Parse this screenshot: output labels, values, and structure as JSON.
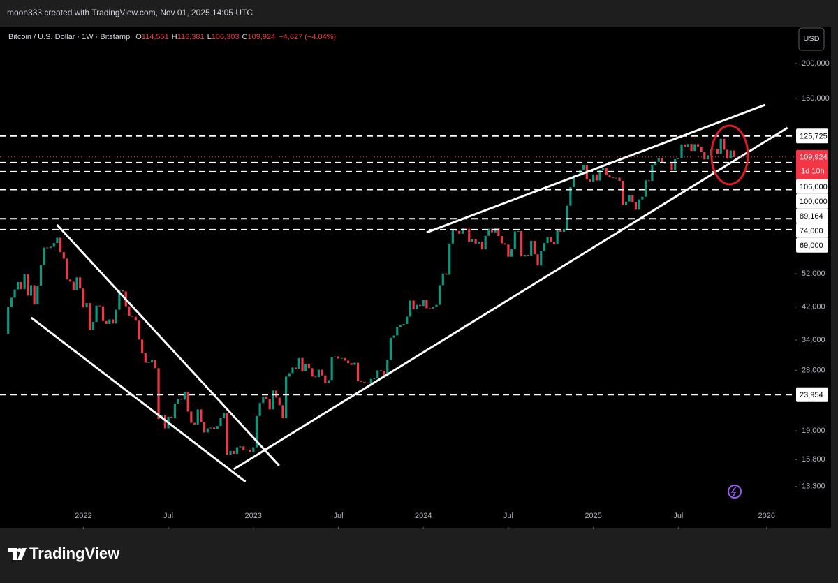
{
  "page_header": "moon333 created with TradingView.com, Nov 01, 2025 14:05 UTC",
  "chart_data": {
    "type": "candlestick",
    "symbol": "Bitcoin / U.S. Dollar · 1W · Bitstamp",
    "ohlc_text": [
      {
        "key": "O",
        "value": "114,551"
      },
      {
        "key": "H",
        "value": "116,381"
      },
      {
        "key": "L",
        "value": "106,303"
      },
      {
        "key": "C",
        "value": "109,924"
      }
    ],
    "change": "−4,627 (−4.04%)",
    "currency": "USD",
    "log_scale": true,
    "grid": false,
    "up_color": "#089981",
    "down_color": "#f23645",
    "xlim": [
      -2.5,
      240.6
    ],
    "xticks": [
      {
        "value": 23,
        "label": "2022"
      },
      {
        "value": 49,
        "label": "Jul"
      },
      {
        "value": 75,
        "label": "2023"
      },
      {
        "value": 101,
        "label": "Jul"
      },
      {
        "value": 127,
        "label": "2024"
      },
      {
        "value": 153,
        "label": "Jul"
      },
      {
        "value": 179,
        "label": "2025"
      },
      {
        "value": 205,
        "label": "Jul"
      },
      {
        "value": 232,
        "label": "2026"
      }
    ],
    "ylim": [
      10250,
      253500
    ],
    "yticks": [
      {
        "value": 200000,
        "label": "200,000"
      },
      {
        "value": 160000,
        "label": "160,000"
      },
      {
        "value": 52000,
        "label": "52,000"
      },
      {
        "value": 42000,
        "label": "42,000"
      },
      {
        "value": 34000,
        "label": "34,000"
      },
      {
        "value": 28000,
        "label": "28,000"
      },
      {
        "value": 19000,
        "label": "19,000"
      },
      {
        "value": 15800,
        "label": "15,800"
      },
      {
        "value": 13300,
        "label": "13,300"
      }
    ],
    "levels": [
      {
        "value": 125725,
        "label": "125,725"
      },
      {
        "value": 106000,
        "label": "106,000"
      },
      {
        "value": 100000,
        "label": "100,000"
      },
      {
        "value": 89164,
        "label": "89,164"
      },
      {
        "value": 74000,
        "label": "74,000"
      },
      {
        "value": 69000,
        "label": "69,000"
      },
      {
        "value": 23954,
        "label": "23,954"
      }
    ],
    "last_price": {
      "value": 109924,
      "label": "109,924",
      "countdown": "1d 10h"
    },
    "trendlines": [
      [
        14.95,
        71150,
        82.9,
        15200
      ],
      [
        7.05,
        39240,
        72.6,
        13710
      ],
      [
        69.0,
        14860,
        238.4,
        132500
      ],
      [
        128.0,
        67730,
        231.6,
        153600
      ]
    ],
    "highlight": {
      "x": 220.7,
      "y": 111300
    },
    "series": [
      {
        "name": "BTCUSD",
        "values": [
          [
            35400,
            42000
          ],
          [
            42000,
            44600
          ],
          [
            44600,
            47000
          ],
          [
            47000,
            49300
          ],
          [
            49300,
            47100
          ],
          [
            47100,
            51800
          ],
          [
            51800,
            45200
          ],
          [
            45200,
            48300
          ],
          [
            48300,
            42700
          ],
          [
            42700,
            48200
          ],
          [
            48200,
            54900
          ],
          [
            54900,
            61500
          ],
          [
            61500,
            61300
          ],
          [
            61300,
            61800
          ],
          [
            61800,
            63300
          ],
          [
            63300,
            65500
          ],
          [
            65500,
            59700
          ],
          [
            59700,
            57300
          ],
          [
            57300,
            50100
          ],
          [
            50100,
            49400
          ],
          [
            49400,
            46700
          ],
          [
            46700,
            50800
          ],
          [
            50800,
            47300
          ],
          [
            47300,
            41900
          ],
          [
            41900,
            43100
          ],
          [
            43100,
            36300
          ],
          [
            36300,
            38200
          ],
          [
            38200,
            42400
          ],
          [
            42400,
            42200
          ],
          [
            42200,
            38400
          ],
          [
            38400,
            37700
          ],
          [
            37700,
            38800
          ],
          [
            38800,
            37800
          ],
          [
            37800,
            41300
          ],
          [
            41300,
            46800
          ],
          [
            46800,
            46400
          ],
          [
            46400,
            42200
          ],
          [
            42200,
            39700
          ],
          [
            39700,
            39500
          ],
          [
            39500,
            38500
          ],
          [
            38500,
            34100
          ],
          [
            34100,
            31300
          ],
          [
            31300,
            29400
          ],
          [
            29400,
            29500
          ],
          [
            29500,
            29900
          ],
          [
            29900,
            28400
          ],
          [
            28400,
            20500
          ],
          [
            20500,
            21000
          ],
          [
            21000,
            19300
          ],
          [
            19300,
            20800
          ],
          [
            20800,
            20600
          ],
          [
            20600,
            22600
          ],
          [
            22600,
            23300
          ],
          [
            23300,
            23200
          ],
          [
            23200,
            24400
          ],
          [
            24400,
            21500
          ],
          [
            21500,
            20000
          ],
          [
            20000,
            19800
          ],
          [
            19800,
            21800
          ],
          [
            21800,
            20100
          ],
          [
            20100,
            18800
          ],
          [
            18800,
            19300
          ],
          [
            19300,
            19400
          ],
          [
            19400,
            19200
          ],
          [
            19200,
            19600
          ],
          [
            19600,
            20600
          ],
          [
            20600,
            21300
          ],
          [
            21300,
            16300
          ],
          [
            16300,
            16700
          ],
          [
            16700,
            16400
          ],
          [
            16400,
            17100
          ],
          [
            17100,
            17200
          ],
          [
            17200,
            16800
          ],
          [
            16800,
            16850
          ],
          [
            16850,
            16600
          ],
          [
            16600,
            17100
          ],
          [
            17100,
            20900
          ],
          [
            20900,
            22700
          ],
          [
            22700,
            23700
          ],
          [
            23700,
            23300
          ],
          [
            23300,
            21800
          ],
          [
            21800,
            24600
          ],
          [
            24600,
            23500
          ],
          [
            23500,
            22400
          ],
          [
            22400,
            20600
          ],
          [
            20600,
            26900
          ],
          [
            26900,
            27500
          ],
          [
            27500,
            28500
          ],
          [
            28500,
            28300
          ],
          [
            28300,
            30300
          ],
          [
            30300,
            27800
          ],
          [
            27800,
            29200
          ],
          [
            29200,
            28400
          ],
          [
            28400,
            26900
          ],
          [
            26900,
            26800
          ],
          [
            26800,
            28100
          ],
          [
            28100,
            27100
          ],
          [
            27100,
            25800
          ],
          [
            25800,
            26300
          ],
          [
            26300,
            30500
          ],
          [
            30500,
            30600
          ],
          [
            30600,
            30200
          ],
          [
            30200,
            30300
          ],
          [
            30300,
            29800
          ],
          [
            29800,
            29300
          ],
          [
            29300,
            29000
          ],
          [
            29000,
            29400
          ],
          [
            29400,
            26100
          ],
          [
            26100,
            26000
          ],
          [
            26000,
            25900
          ],
          [
            25900,
            25800
          ],
          [
            25800,
            26500
          ],
          [
            26500,
            26600
          ],
          [
            26600,
            28000
          ],
          [
            28000,
            27900
          ],
          [
            27900,
            26900
          ],
          [
            26900,
            29900
          ],
          [
            29900,
            34500
          ],
          [
            34500,
            35000
          ],
          [
            35000,
            37000
          ],
          [
            37000,
            37400
          ],
          [
            37400,
            37700
          ],
          [
            37700,
            39500
          ],
          [
            39500,
            43800
          ],
          [
            43800,
            41400
          ],
          [
            41400,
            42600
          ],
          [
            42600,
            42300
          ],
          [
            42300,
            43900
          ],
          [
            43900,
            41700
          ],
          [
            41700,
            41600
          ],
          [
            41600,
            42000
          ],
          [
            42000,
            42600
          ],
          [
            42600,
            48300
          ],
          [
            48300,
            52100
          ],
          [
            52100,
            51700
          ],
          [
            51700,
            63100
          ],
          [
            63100,
            68900
          ],
          [
            68900,
            68400
          ],
          [
            68400,
            67200
          ],
          [
            67200,
            69700
          ],
          [
            69700,
            69400
          ],
          [
            69400,
            63900
          ],
          [
            63900,
            64900
          ],
          [
            64900,
            63100
          ],
          [
            63100,
            63900
          ],
          [
            63900,
            60800
          ],
          [
            60800,
            66300
          ],
          [
            66300,
            69400
          ],
          [
            69400,
            67800
          ],
          [
            67800,
            69600
          ],
          [
            69600,
            66200
          ],
          [
            66200,
            63200
          ],
          [
            63200,
            62700
          ],
          [
            62700,
            58000
          ],
          [
            58000,
            60800
          ],
          [
            60800,
            68200
          ],
          [
            68200,
            68300
          ],
          [
            68300,
            58100
          ],
          [
            58100,
            58700
          ],
          [
            58700,
            58400
          ],
          [
            58400,
            64200
          ],
          [
            64200,
            58900
          ],
          [
            58900,
            54800
          ],
          [
            54800,
            60000
          ],
          [
            60000,
            63300
          ],
          [
            63300,
            65800
          ],
          [
            65800,
            63900
          ],
          [
            63900,
            62800
          ],
          [
            62800,
            69000
          ],
          [
            69000,
            68000
          ],
          [
            68000,
            69300
          ],
          [
            69300,
            80400
          ],
          [
            80400,
            90600
          ],
          [
            90600,
            98000
          ],
          [
            98000,
            97400
          ],
          [
            97400,
            101100
          ],
          [
            101100,
            104400
          ],
          [
            104400,
            95200
          ],
          [
            95200,
            93700
          ],
          [
            93700,
            98300
          ],
          [
            98300,
            94500
          ],
          [
            94500,
            101300
          ],
          [
            101300,
            102600
          ],
          [
            102600,
            97700
          ],
          [
            97700,
            96500
          ],
          [
            96500,
            96100
          ],
          [
            96100,
            96200
          ],
          [
            96200,
            94300
          ],
          [
            94300,
            80700
          ],
          [
            80700,
            82600
          ],
          [
            82600,
            86100
          ],
          [
            86100,
            82300
          ],
          [
            82300,
            78400
          ],
          [
            78400,
            83700
          ],
          [
            83700,
            85200
          ],
          [
            85200,
            94600
          ],
          [
            94600,
            94300
          ],
          [
            94300,
            104200
          ],
          [
            104200,
            106500
          ],
          [
            106500,
            109000
          ],
          [
            109000,
            105700
          ],
          [
            105700,
            105500
          ],
          [
            105500,
            106000
          ],
          [
            106000,
            100900
          ],
          [
            100900,
            108400
          ],
          [
            108400,
            109200
          ],
          [
            109200,
            119100
          ],
          [
            119100,
            117300
          ],
          [
            117300,
            119400
          ],
          [
            119400,
            114200
          ],
          [
            114200,
            119300
          ],
          [
            119300,
            117500
          ],
          [
            117500,
            113500
          ],
          [
            113500,
            108200
          ],
          [
            108200,
            111100
          ],
          [
            111100,
            115300
          ],
          [
            115300,
            115700
          ],
          [
            115700,
            112200
          ],
          [
            112200,
            123500
          ],
          [
            123500,
            115100
          ],
          [
            115100,
            108700
          ],
          [
            108700,
            114551
          ],
          [
            114551,
            109924
          ]
        ]
      }
    ]
  },
  "footer": {
    "brand": "TradingView"
  }
}
